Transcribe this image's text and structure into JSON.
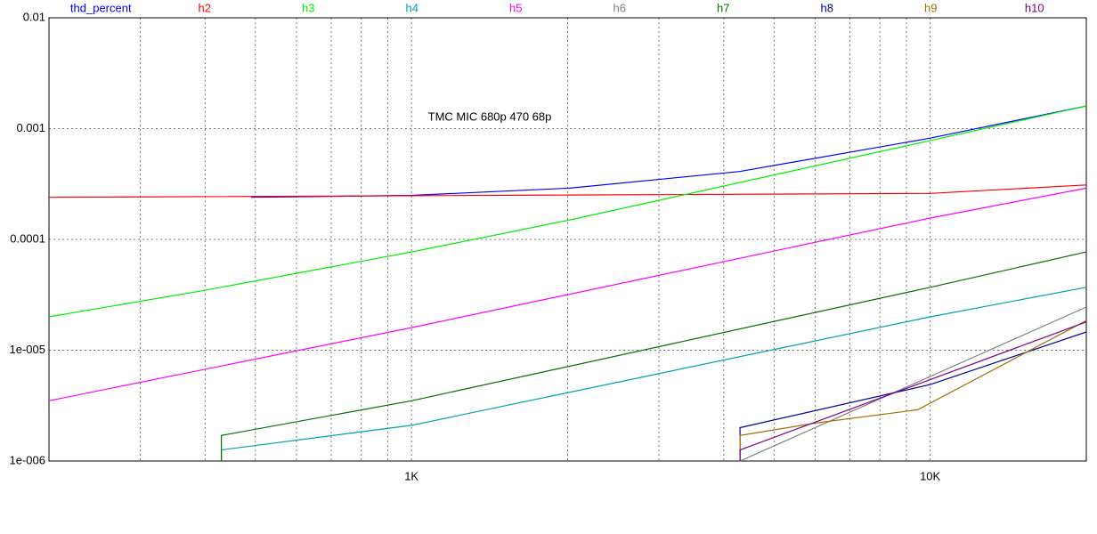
{
  "chart_data": {
    "type": "line",
    "xscale": "log",
    "yscale": "log",
    "xlim": [
      200,
      20000
    ],
    "ylim": [
      1e-06,
      0.01
    ],
    "xticks": [
      {
        "value": 1000,
        "label": "1K"
      },
      {
        "value": 10000,
        "label": "10K"
      }
    ],
    "xgrid_lines": [
      300,
      400,
      500,
      600,
      700,
      800,
      900,
      1000,
      2000,
      3000,
      4000,
      5000,
      6000,
      7000,
      8000,
      9000,
      10000
    ],
    "yticks": [
      0.01,
      0.001,
      0.0001,
      {
        "value": 1e-05,
        "label": "1e-005"
      },
      {
        "value": 1e-06,
        "label": "1e-006"
      }
    ],
    "grid": true,
    "annotation": "TMC MIC 680p 470 68p",
    "series": [
      {
        "name": "thd_percent",
        "color": "#0000ff",
        "x": [
          490,
          1000,
          2020,
          4290,
          10000,
          20000
        ],
        "values": [
          0.00024,
          0.00025,
          0.00029,
          0.00041,
          0.00082,
          0.0016
        ]
      },
      {
        "name": "h2",
        "color": "#ff0000",
        "x": [
          200,
          10000,
          20000
        ],
        "values": [
          0.00024,
          0.00026,
          0.00031
        ]
      },
      {
        "name": "h3",
        "color": "#00ee00",
        "x": [
          200,
          403,
          1000,
          2020,
          10000,
          20000
        ],
        "values": [
          2e-05,
          3.5e-05,
          7.7e-05,
          0.00015,
          0.00078,
          0.0016
        ]
      },
      {
        "name": "h4",
        "color": "#00a0b0",
        "x": [
          430,
          430,
          1000,
          10000,
          20000
        ],
        "values": [
          1e-06,
          1.26e-06,
          2.1e-06,
          2e-05,
          3.7e-05
        ]
      },
      {
        "name": "h5",
        "color": "#ff00ff",
        "x": [
          200,
          1000,
          10000,
          20000
        ],
        "values": [
          3.5e-06,
          1.6e-05,
          0.000156,
          0.00029
        ]
      },
      {
        "name": "h6",
        "color": "#808080",
        "x": [
          4300,
          20000
        ],
        "values": [
          1e-06,
          2.45e-05
        ]
      },
      {
        "name": "h7",
        "color": "#007000",
        "x": [
          430,
          430,
          1000,
          10000,
          20000
        ],
        "values": [
          1e-06,
          1.7e-06,
          3.5e-06,
          3.7e-05,
          7.7e-05
        ]
      },
      {
        "name": "h8",
        "color": "#00009a",
        "x": [
          4300,
          4300,
          10000,
          20000
        ],
        "values": [
          1e-06,
          2e-06,
          4.9e-06,
          1.46e-05
        ]
      },
      {
        "name": "h9",
        "color": "#a07000",
        "x": [
          4300,
          4300,
          6000,
          9460,
          20000
        ],
        "values": [
          1e-06,
          1.7e-06,
          2.2e-06,
          2.9e-06,
          1.85e-05
        ]
      },
      {
        "name": "h10",
        "color": "#800080",
        "x": [
          4300,
          4300,
          20000
        ],
        "values": [
          1e-06,
          1.26e-06,
          1.8e-05
        ]
      }
    ]
  }
}
